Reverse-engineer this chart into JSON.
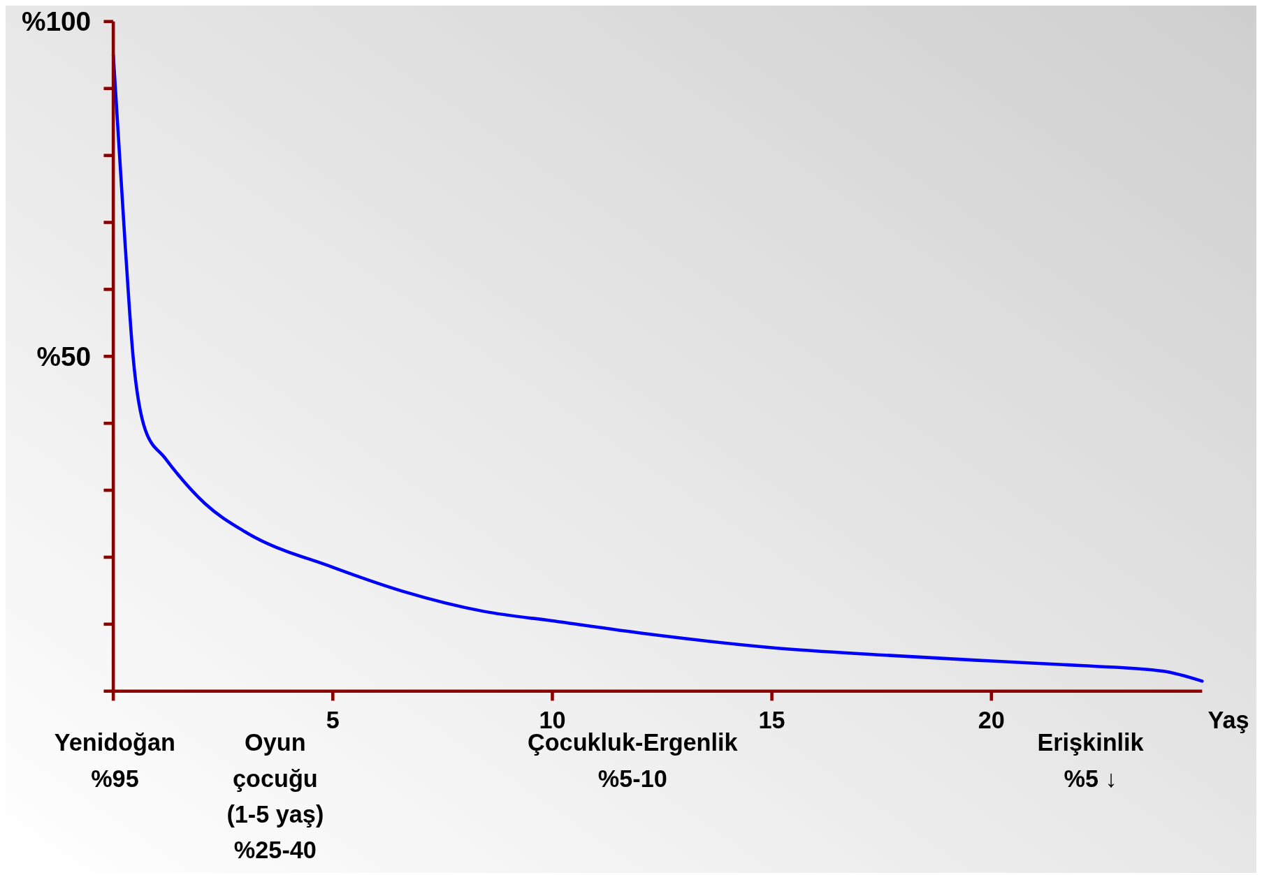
{
  "chart_data": {
    "type": "line",
    "xlabel": "Yaş",
    "x": [
      0,
      0.27,
      0.45,
      0.73,
      1.18,
      2.09,
      3.0,
      5,
      6.6,
      8.45,
      10,
      12.1,
      15,
      17.5,
      20,
      22.1,
      23.9,
      24.8
    ],
    "series": [
      {
        "color": "#0000ff",
        "values": [
          95,
          66.7,
          50,
          39,
          34.8,
          28,
          23.8,
          18.5,
          14.9,
          11.9,
          10.5,
          8.6,
          6.5,
          5.4,
          4.5,
          3.8,
          3.0,
          1.5
        ]
      }
    ],
    "xlim": [
      0,
      24.8
    ],
    "ylim": [
      0,
      100
    ],
    "xticks": [
      {
        "value": 0,
        "label": null
      },
      5,
      10,
      15,
      20
    ],
    "yticks": [
      {
        "value": 0,
        "label": null
      },
      {
        "value": 10,
        "label": null
      },
      {
        "value": 20,
        "label": null
      },
      {
        "value": 30,
        "label": null
      },
      {
        "value": 40,
        "label": null
      },
      {
        "value": 50,
        "label": "%50"
      },
      {
        "value": 60,
        "label": null
      },
      {
        "value": 70,
        "label": null
      },
      {
        "value": 80,
        "label": null
      },
      {
        "value": 90,
        "label": null
      },
      {
        "value": 100,
        "label": "%100"
      }
    ],
    "grid": false,
    "marker": "none",
    "line_style": "solid",
    "annotations": [
      "Yenidoğan\n%95",
      "Oyun\nçocuğu\n(1-5 yaş)\n%25-40",
      "Çocukluk-Ergenlik\n%5-10",
      "Erişkinlik\n%5 ↓"
    ]
  }
}
